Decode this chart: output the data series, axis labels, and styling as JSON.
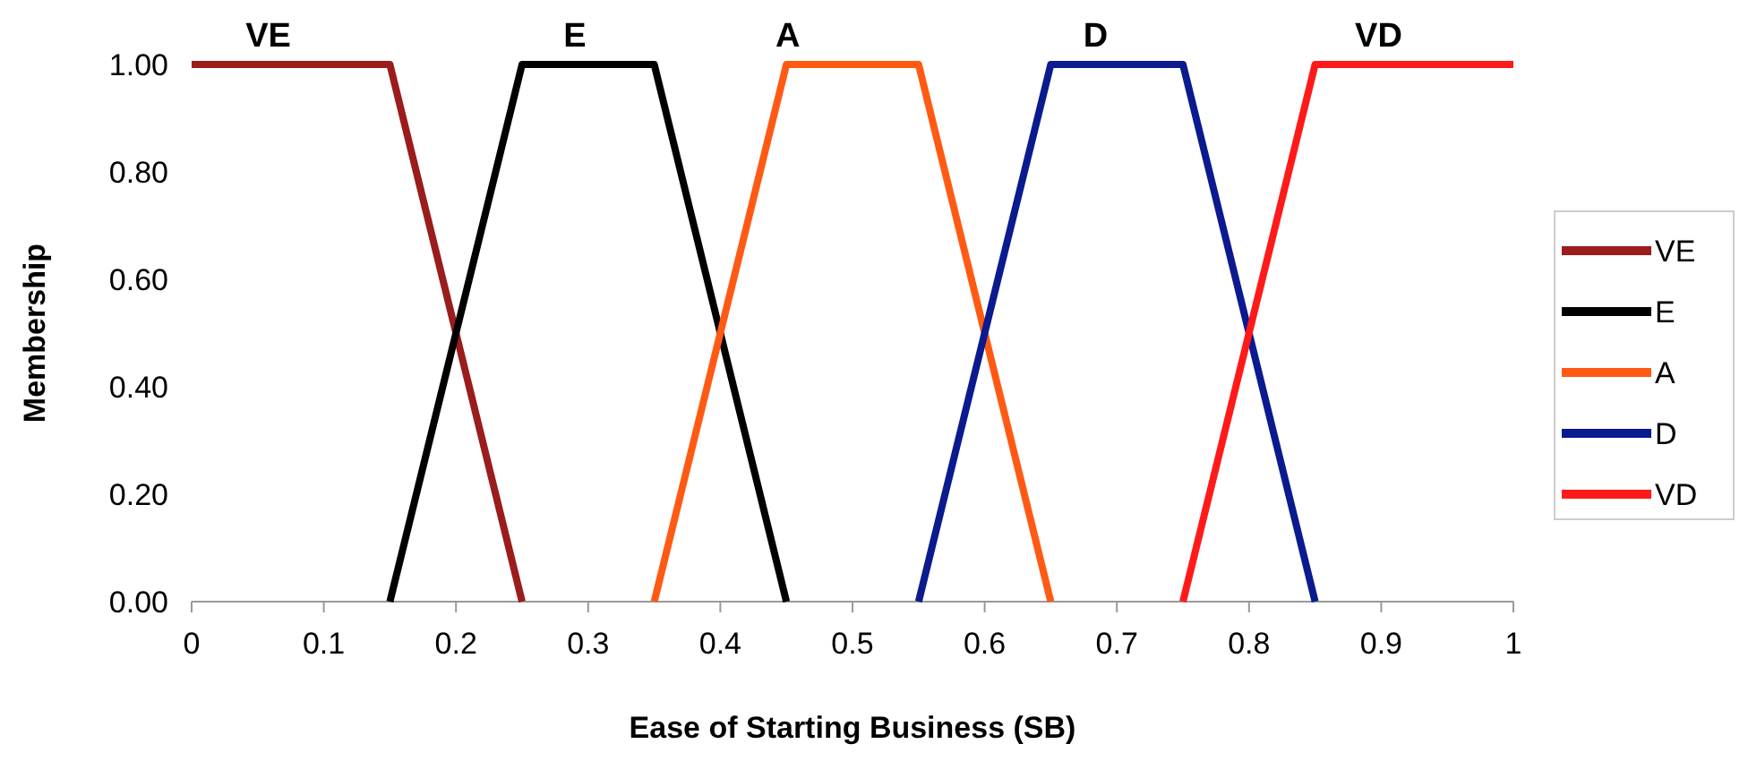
{
  "chart_data": {
    "type": "line",
    "xlabel": "Ease of Starting Business (SB)",
    "ylabel": "Membership",
    "xlim": [
      0,
      1
    ],
    "xticks": [
      0,
      0.1,
      0.2,
      0.3,
      0.4,
      0.5,
      0.6,
      0.7,
      0.8,
      0.9,
      1
    ],
    "ylim": [
      0,
      1
    ],
    "yticks": [
      {
        "value": 0,
        "label": "0.00"
      },
      {
        "value": 0.2,
        "label": "0.20"
      },
      {
        "value": 0.4,
        "label": "0.40"
      },
      {
        "value": 0.6,
        "label": "0.60"
      },
      {
        "value": 0.8,
        "label": "0.80"
      },
      {
        "value": 1,
        "label": "1.00"
      }
    ],
    "legend": "right",
    "marker": "none",
    "line_style": "solid",
    "grid": false,
    "series": [
      {
        "name": "VE",
        "color": "#9b1c1c",
        "x": [
          0,
          0.15,
          0.25
        ],
        "values": [
          1,
          1,
          0
        ]
      },
      {
        "name": "E",
        "color": "#000000",
        "x": [
          0.15,
          0.25,
          0.35,
          0.45
        ],
        "values": [
          0,
          1,
          1,
          0
        ]
      },
      {
        "name": "A",
        "color": "#ff5a14",
        "x": [
          0.35,
          0.45,
          0.55,
          0.65
        ],
        "values": [
          0,
          1,
          1,
          0
        ]
      },
      {
        "name": "D",
        "color": "#0c1a8f",
        "x": [
          0.55,
          0.65,
          0.75,
          0.85
        ],
        "values": [
          0,
          1,
          1,
          0
        ]
      },
      {
        "name": "VD",
        "color": "#ff1a1a",
        "x": [
          0.75,
          0.85,
          1
        ],
        "values": [
          0,
          1,
          1
        ]
      }
    ],
    "annotations": [
      {
        "text": "VE",
        "x": 0.058,
        "y": 1
      },
      {
        "text": "E",
        "x": 0.29,
        "y": 1
      },
      {
        "text": "A",
        "x": 0.451,
        "y": 1
      },
      {
        "text": "D",
        "x": 0.684,
        "y": 1
      },
      {
        "text": "VD",
        "x": 0.898,
        "y": 1
      }
    ]
  }
}
